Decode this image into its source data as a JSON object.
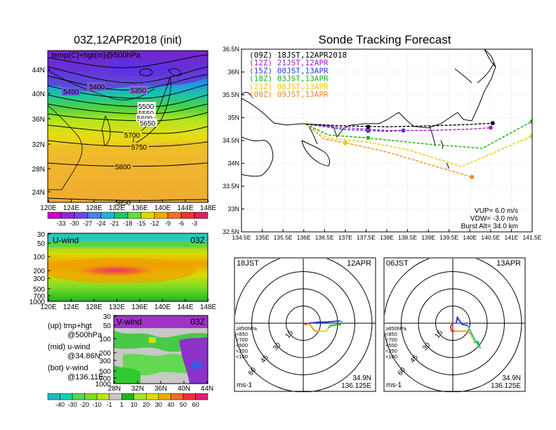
{
  "left": {
    "title": "03Z,12APR2018 (init)",
    "upper_panel": {
      "label": "temp(C)+hgt(m)@500hPa",
      "y_ticks": [
        "44N",
        "40N",
        "36N",
        "32N",
        "28N",
        "24N"
      ],
      "x_ticks": [
        "120E",
        "124E",
        "128E",
        "132E",
        "136E",
        "140E",
        "144E",
        "148E"
      ],
      "contour_labels": [
        "5400",
        "5350",
        "5450",
        "5500",
        "5550",
        "5600",
        "5650",
        "5700",
        "5750",
        "5800",
        "5850"
      ]
    },
    "temp_colorbar": {
      "labels": [
        "-33",
        "-30",
        "-27",
        "-24",
        "-21",
        "-18",
        "-15",
        "-12",
        "-9",
        "-6",
        "-3"
      ],
      "colors": [
        "#c800c8",
        "#8c28d2",
        "#6e46e6",
        "#4682f0",
        "#1eb4d2",
        "#1ec864",
        "#64dc3c",
        "#dcdc00",
        "#f0aa00",
        "#f06e28",
        "#f03232",
        "#e61e5a"
      ]
    },
    "u_panel": {
      "label": "U-wind",
      "time": "03Z",
      "y_ticks": [
        "30",
        "50",
        "100",
        "200",
        "300",
        "500",
        "700",
        "1000"
      ],
      "x_ticks": [
        "120E",
        "124E",
        "128E",
        "132E",
        "136E",
        "140E",
        "144E",
        "148E"
      ]
    },
    "v_panel": {
      "label": "V-wind",
      "time": "03Z",
      "y_ticks": [
        "30",
        "50",
        "100",
        "200",
        "300",
        "500",
        "700",
        "1000"
      ],
      "x_ticks": [
        "28N",
        "32N",
        "36N",
        "40N",
        "44N"
      ]
    },
    "legend_notes": [
      [
        "(up) tmp+hgt",
        "@500hPa"
      ],
      [
        "(mid) u-wind",
        "@34.86N"
      ],
      [
        "(bot) v-wind",
        "@136.11E"
      ]
    ],
    "wind_colorbar": {
      "labels": [
        "-40",
        "-30",
        "-20",
        "-10",
        "-1",
        "1",
        "10",
        "20",
        "30",
        "40",
        "50",
        "60"
      ],
      "colors": [
        "#28b4c8",
        "#1ecdb4",
        "#50dc50",
        "#78dc28",
        "#b4e61e",
        "#c8c8c8",
        "#1eb41e",
        "#a0e632",
        "#dcdc00",
        "#f0aa00",
        "#f06e28",
        "#f03232",
        "#dc1e78"
      ]
    }
  },
  "chart_data": {
    "type": "line",
    "title": "Sonde Tracking Forecast",
    "xlabel": "",
    "ylabel": "",
    "xlim": [
      134.5,
      141.5
    ],
    "ylim": [
      32.5,
      36.5
    ],
    "x_ticks": [
      "134.5E",
      "135E",
      "135.5E",
      "136E",
      "136.5E",
      "137E",
      "137.5E",
      "138E",
      "138.5E",
      "139E",
      "139.5E",
      "140E",
      "140.5E",
      "141E",
      "141.5E"
    ],
    "y_ticks": [
      "36.5N",
      "36N",
      "35.5N",
      "35N",
      "34.5N",
      "34N",
      "33.5N",
      "33N",
      "32.5N"
    ],
    "legend": [
      {
        "label": "(09Z)  18JST,12APR2018",
        "color": "#000000"
      },
      {
        "label": "(12Z)  21JST,12APR",
        "color": "#a020d0"
      },
      {
        "label": "(15Z)  00JST,13APR",
        "color": "#2a3ee6"
      },
      {
        "label": "(18Z)  03JST,13APR",
        "color": "#18b018"
      },
      {
        "label": "(21Z)  06JST,13APR",
        "color": "#f0c800"
      },
      {
        "label": "(00Z)  09JST,13APR",
        "color": "#f08c28"
      }
    ],
    "series": [
      {
        "name": "(09Z)  18JST,12APR2018",
        "color": "#000000",
        "x": [
          136.05,
          137.0,
          138.0,
          139.0,
          140.0,
          140.55
        ],
        "y": [
          34.86,
          34.82,
          34.8,
          34.82,
          34.85,
          34.88
        ],
        "marker": [
          137.55,
          34.8
        ],
        "end": [
          140.55,
          34.88
        ]
      },
      {
        "name": "(12Z)  21JST,12APR",
        "color": "#a020d0",
        "x": [
          136.05,
          137.0,
          138.0,
          139.0,
          140.0,
          140.5
        ],
        "y": [
          34.86,
          34.78,
          34.72,
          34.72,
          34.75,
          34.78
        ],
        "marker": [
          137.55,
          34.75
        ],
        "end": [
          140.5,
          34.78
        ]
      },
      {
        "name": "(15Z)  00JST,13APR",
        "color": "#2a3ee6",
        "x": [
          136.05,
          137.0,
          138.0,
          138.4
        ],
        "y": [
          34.86,
          34.74,
          34.7,
          34.72
        ],
        "marker": [
          137.55,
          34.71
        ],
        "end": [
          138.4,
          34.72
        ]
      },
      {
        "name": "(18Z)  03JST,13APR",
        "color": "#18b018",
        "x": [
          136.05,
          136.6,
          137.5,
          139.0,
          140.3,
          141.5
        ],
        "y": [
          34.86,
          34.62,
          34.56,
          34.42,
          34.33,
          34.92
        ],
        "marker": [
          137.55,
          34.56
        ],
        "end": [
          141.5,
          34.92
        ]
      },
      {
        "name": "(21Z)  06JST,13APR",
        "color": "#f0c800",
        "x": [
          136.05,
          136.6,
          137.5,
          138.5,
          139.8,
          141.5
        ],
        "y": [
          34.86,
          34.55,
          34.47,
          34.3,
          33.93,
          34.6
        ],
        "marker": [
          137.0,
          34.44
        ],
        "end": [
          141.5,
          34.6
        ]
      },
      {
        "name": "(00Z)  09JST,13APR",
        "color": "#f08c28",
        "x": [
          136.05,
          136.5,
          137.0,
          138.0,
          139.0,
          140.05
        ],
        "y": [
          34.86,
          34.53,
          34.45,
          34.25,
          33.98,
          33.7
        ],
        "marker": [
          137.0,
          34.45
        ],
        "end": [
          140.05,
          33.7
        ]
      }
    ],
    "params": [
      "VUP= 6.0 m/s",
      "VDW= -3.0 m/s",
      "Burst Alt= 34.0 km"
    ]
  },
  "hodographs": [
    {
      "left_label": "18JST",
      "right_label": "12APR",
      "rings": [
        "15",
        "30",
        "45",
        "60"
      ],
      "pressure_legend": [
        {
          "label": "≥850hPa",
          "color": "#e63232"
        },
        {
          "label": "<850",
          "color": "#f0a000"
        },
        {
          "label": "<700",
          "color": "#dcdc00"
        },
        {
          "label": "<500",
          "color": "#1eb41e"
        },
        {
          "label": "<250",
          "color": "#1ec8c8"
        },
        {
          "label": "<100",
          "color": "#2a3ee6"
        }
      ],
      "unit": "ms-1",
      "loc": [
        "34.9N",
        "136.125E"
      ],
      "segments": [
        {
          "color": "#e63232",
          "u": [
            0,
            2,
            5
          ],
          "v": [
            0,
            -1,
            0
          ]
        },
        {
          "color": "#f0a000",
          "u": [
            5,
            10,
            13
          ],
          "v": [
            0,
            -7,
            -7
          ]
        },
        {
          "color": "#dcdc00",
          "u": [
            13,
            20,
            22
          ],
          "v": [
            -7,
            -7,
            -4
          ]
        },
        {
          "color": "#1eb41e",
          "u": [
            22,
            24,
            33
          ],
          "v": [
            -4,
            -2,
            -1
          ]
        },
        {
          "color": "#1ec8c8",
          "u": [
            33,
            34,
            32
          ],
          "v": [
            -1,
            1,
            2
          ]
        },
        {
          "color": "#2a3ee6",
          "u": [
            32,
            20,
            14,
            5
          ],
          "v": [
            2,
            1,
            1,
            0
          ]
        }
      ]
    },
    {
      "left_label": "06JST",
      "right_label": "13APR",
      "rings": [
        "15",
        "30",
        "45",
        "60"
      ],
      "pressure_legend": [
        {
          "label": "≥850hPa",
          "color": "#e63232"
        },
        {
          "label": "<850",
          "color": "#f0a000"
        },
        {
          "label": "<700",
          "color": "#dcdc00"
        },
        {
          "label": "<500",
          "color": "#1eb41e"
        },
        {
          "label": "<250",
          "color": "#1ec8c8"
        },
        {
          "label": "<100",
          "color": "#2a3ee6"
        }
      ],
      "unit": "ms-1",
      "loc": [
        "34.9N",
        "136.125E"
      ],
      "segments": [
        {
          "color": "#e63232",
          "u": [
            0,
            -2,
            -1,
            2
          ],
          "v": [
            0,
            -3,
            -7,
            -7
          ]
        },
        {
          "color": "#f0a000",
          "u": [
            2,
            13,
            16
          ],
          "v": [
            -7,
            -7,
            -10
          ]
        },
        {
          "color": "#dcdc00",
          "u": [
            16,
            19
          ],
          "v": [
            -10,
            -17
          ]
        },
        {
          "color": "#1eb41e",
          "u": [
            19,
            22,
            24
          ],
          "v": [
            -17,
            -16,
            -22
          ]
        },
        {
          "color": "#1ec8c8",
          "u": [
            24,
            19,
            15,
            13
          ],
          "v": [
            -22,
            -14,
            -6,
            -2
          ]
        },
        {
          "color": "#2a3ee6",
          "u": [
            13,
            8,
            4,
            3
          ],
          "v": [
            -2,
            -1,
            5,
            0
          ]
        }
      ]
    }
  ]
}
